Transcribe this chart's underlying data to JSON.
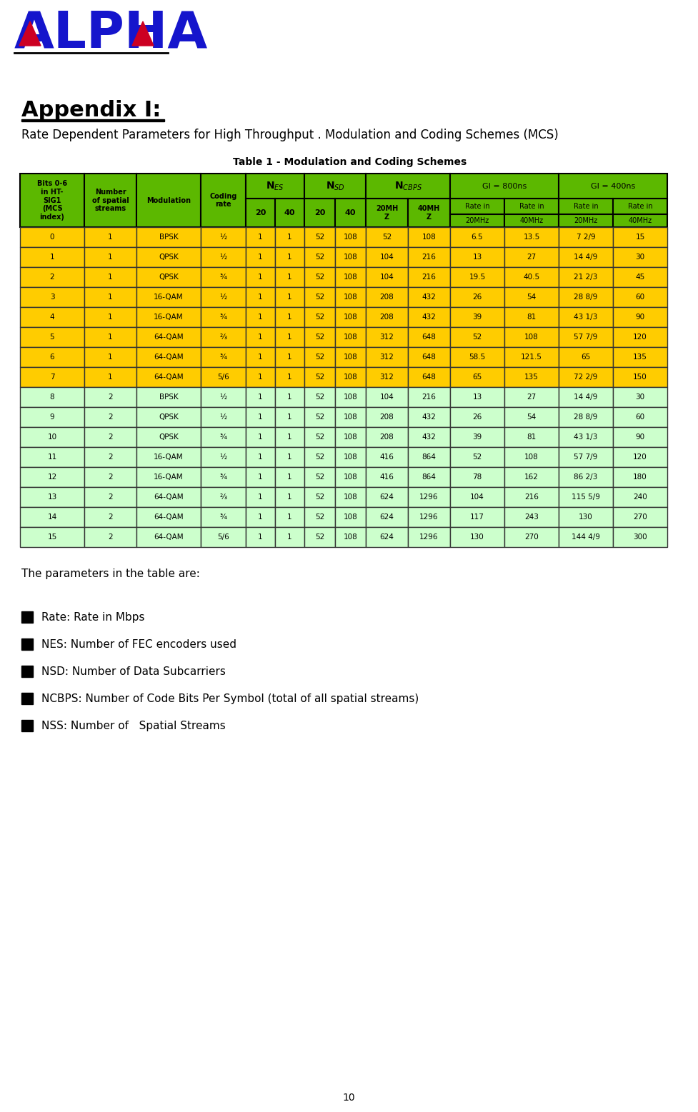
{
  "title_appendix": "Appendix I:",
  "subtitle": "Rate Dependent Parameters for High Throughput . Modulation and Coding Schemes (MCS)",
  "table_title": "Table 1 - Modulation and Coding Schemes",
  "header_bg_green": "#5CB800",
  "row_bg_yellow": "#FFCC00",
  "row_bg_green": "#CCFFCC",
  "border_color": "#000000",
  "logo_color_blue": "#1515CC",
  "logo_color_red": "#CC0022",
  "table_data": [
    [
      0,
      1,
      "BPSK",
      "½",
      1,
      1,
      52,
      108,
      52,
      108,
      "6.5",
      "13.5",
      "7 2/9",
      15
    ],
    [
      1,
      1,
      "QPSK",
      "½",
      1,
      1,
      52,
      108,
      104,
      216,
      13,
      27,
      "14 4/9",
      30
    ],
    [
      2,
      1,
      "QPSK",
      "¾",
      1,
      1,
      52,
      108,
      104,
      216,
      "19.5",
      "40.5",
      "21 2/3",
      45
    ],
    [
      3,
      1,
      "16-QAM",
      "½",
      1,
      1,
      52,
      108,
      208,
      432,
      26,
      54,
      "28 8/9",
      60
    ],
    [
      4,
      1,
      "16-QAM",
      "¾",
      1,
      1,
      52,
      108,
      208,
      432,
      39,
      81,
      "43 1/3",
      90
    ],
    [
      5,
      1,
      "64-QAM",
      "⅔",
      1,
      1,
      52,
      108,
      312,
      648,
      52,
      108,
      "57 7/9",
      120
    ],
    [
      6,
      1,
      "64-QAM",
      "¾",
      1,
      1,
      52,
      108,
      312,
      648,
      "58.5",
      "121.5",
      65,
      135
    ],
    [
      7,
      1,
      "64-QAM",
      "5/6",
      1,
      1,
      52,
      108,
      312,
      648,
      65,
      135,
      "72 2/9",
      150
    ],
    [
      8,
      2,
      "BPSK",
      "½",
      1,
      1,
      52,
      108,
      104,
      216,
      13,
      27,
      "14 4/9",
      30
    ],
    [
      9,
      2,
      "QPSK",
      "½",
      1,
      1,
      52,
      108,
      208,
      432,
      26,
      54,
      "28 8/9",
      60
    ],
    [
      10,
      2,
      "QPSK",
      "¾",
      1,
      1,
      52,
      108,
      208,
      432,
      39,
      81,
      "43 1/3",
      90
    ],
    [
      11,
      2,
      "16-QAM",
      "½",
      1,
      1,
      52,
      108,
      416,
      864,
      52,
      108,
      "57 7/9",
      120
    ],
    [
      12,
      2,
      "16-QAM",
      "¾",
      1,
      1,
      52,
      108,
      416,
      864,
      78,
      162,
      "86 2/3",
      180
    ],
    [
      13,
      2,
      "64-QAM",
      "⅔",
      1,
      1,
      52,
      108,
      624,
      1296,
      104,
      216,
      "115 5/9",
      240
    ],
    [
      14,
      2,
      "64-QAM",
      "¾",
      1,
      1,
      52,
      108,
      624,
      1296,
      117,
      243,
      130,
      270
    ],
    [
      15,
      2,
      "64-QAM",
      "5/6",
      1,
      1,
      52,
      108,
      624,
      1296,
      130,
      270,
      "144 4/9",
      300
    ]
  ],
  "bullet_items": [
    "Rate: Rate in Mbps",
    "NES: Number of FEC encoders used",
    "NSD: Number of Data Subcarriers",
    "NCBPS: Number of Code Bits Per Symbol (total of all spatial streams)",
    "NSS: Number of   Spatial Streams"
  ],
  "parameters_text": "The parameters in the table are:",
  "page_number": "10"
}
